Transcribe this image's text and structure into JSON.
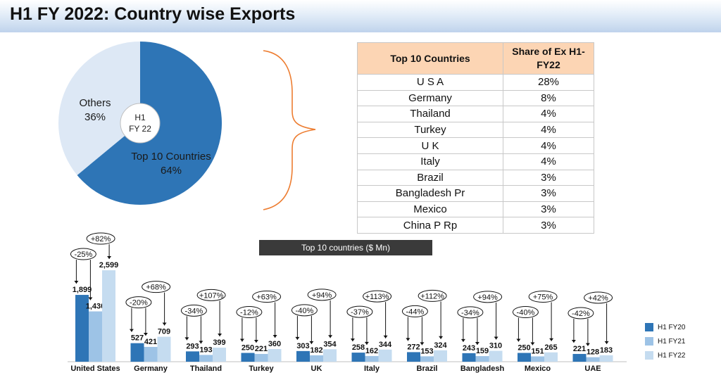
{
  "page": {
    "title": "H1 FY 2022: Country wise Exports"
  },
  "pie": {
    "center_label_line1": "H1",
    "center_label_line2": "FY 22",
    "slices": [
      {
        "name": "Top 10 Countries",
        "value": "64%",
        "percent": 64,
        "color": "#2e75b6"
      },
      {
        "name": "Others",
        "value": "36%",
        "percent": 36,
        "color": "#dde8f5"
      }
    ]
  },
  "share_table": {
    "headers": [
      "Top 10 Countries",
      "Share of Ex H1-FY22"
    ],
    "rows": [
      [
        "U S A",
        "28%"
      ],
      [
        "Germany",
        "8%"
      ],
      [
        "Thailand",
        "4%"
      ],
      [
        "Turkey",
        "4%"
      ],
      [
        "U K",
        "4%"
      ],
      [
        "Italy",
        "4%"
      ],
      [
        "Brazil",
        "3%"
      ],
      [
        "Bangladesh Pr",
        "3%"
      ],
      [
        "Mexico",
        "3%"
      ],
      [
        "China P Rp",
        "3%"
      ]
    ]
  },
  "chart_data": {
    "type": "bar",
    "title": "Top 10 countries ($ Mn)",
    "categories": [
      "United States",
      "Germany",
      "Thailand",
      "Turkey",
      "UK",
      "Italy",
      "Brazil",
      "Bangladesh",
      "Mexico",
      "UAE"
    ],
    "series": [
      {
        "name": "H1 FY20",
        "color": "#2e75b6",
        "values": [
          1899,
          527,
          293,
          250,
          303,
          258,
          272,
          243,
          250,
          221
        ],
        "labels": [
          "1,899",
          "527",
          "293",
          "250",
          "303",
          "258",
          "272",
          "243",
          "250",
          "221"
        ]
      },
      {
        "name": "H1 FY21",
        "color": "#9dc3e6",
        "values": [
          1430,
          421,
          193,
          221,
          182,
          162,
          153,
          159,
          151,
          128
        ],
        "labels": [
          "1,430",
          "421",
          "193",
          "221",
          "182",
          "162",
          "153",
          "159",
          "151",
          "128"
        ]
      },
      {
        "name": "H1 FY22",
        "color": "#c5dcf0",
        "values": [
          2599,
          709,
          399,
          360,
          354,
          344,
          324,
          310,
          265,
          183
        ],
        "labels": [
          "2,599",
          "709",
          "399",
          "360",
          "354",
          "344",
          "324",
          "310",
          "265",
          "183"
        ]
      }
    ],
    "growth_fy21": [
      "-25%",
      "-20%",
      "-34%",
      "-12%",
      "-40%",
      "-37%",
      "-44%",
      "-34%",
      "-40%",
      "-42%"
    ],
    "growth_fy22": [
      "+82%",
      "+68%",
      "+107%",
      "+63%",
      "+94%",
      "+113%",
      "+112%",
      "+94%",
      "+75%",
      "+42%"
    ],
    "legend_position": "right"
  }
}
